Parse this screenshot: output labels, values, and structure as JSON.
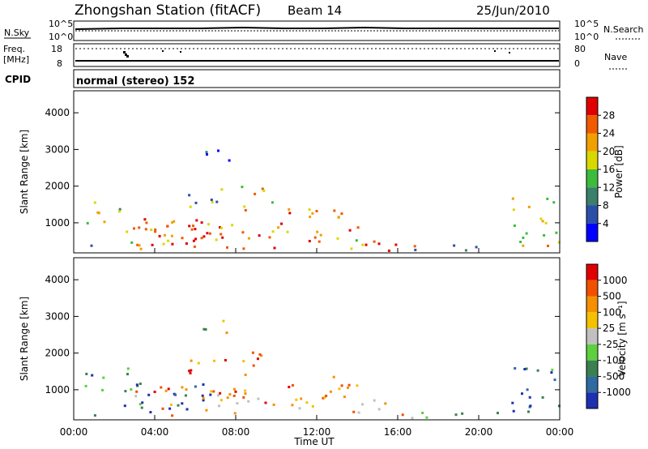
{
  "header": {
    "title": "Zhongshan Station (fitACF)",
    "beam": "Beam 14",
    "date": "25/Jun/2010"
  },
  "noise_panel": {
    "left_label": "N.Sky",
    "right_label": "N.Search",
    "left_ticks": [
      "10^5",
      "10^0"
    ],
    "right_ticks": [
      "10^5",
      "10^0"
    ]
  },
  "freq_panel": {
    "left_label_line1": "Freq.",
    "left_label_line2": "[MHz]",
    "left_ticks": [
      "18",
      "8"
    ],
    "right_label": "Nave",
    "right_ticks": [
      "80",
      "0"
    ]
  },
  "cpid": {
    "label": "CPID",
    "value": "normal (stereo) 152"
  },
  "colors": {
    "power": [
      "#0000ff",
      "#2b4fa8",
      "#3c7f6a",
      "#3dbb3d",
      "#d8d800",
      "#f0a000",
      "#f05a00",
      "#e00000"
    ],
    "velocity": [
      "#1e2fb0",
      "#2f6aa0",
      "#3a8050",
      "#5ecf3e",
      "#c0c0c0",
      "#f5c000",
      "#f59000",
      "#f05000",
      "#e00000"
    ]
  },
  "chart_data": [
    {
      "type": "heatmap",
      "name": "power",
      "ylabel": "Slant Range [km]",
      "xlabel": "",
      "x_ticks": [
        "00:00",
        "04:00",
        "08:00",
        "12:00",
        "16:00",
        "20:00",
        "00:00"
      ],
      "y_ticks": [
        1000,
        2000,
        3000,
        4000
      ],
      "ylim": [
        180,
        4600
      ],
      "xlim_hours": [
        0,
        24
      ],
      "colorbar": {
        "label": "Power [dB]",
        "tick_labels": [
          "4",
          "8",
          "12",
          "16",
          "20",
          "24",
          "28"
        ],
        "range": [
          0,
          32
        ]
      },
      "echo_regions": [
        {
          "t0": 0.3,
          "t1": 1.5,
          "r0": 900,
          "r1": 1700,
          "level": 0.55
        },
        {
          "t0": 0.3,
          "t1": 1.4,
          "r0": 300,
          "r1": 500,
          "level": 0.3
        },
        {
          "t0": 2.0,
          "t1": 2.7,
          "r0": 1200,
          "r1": 1700,
          "level": 0.45
        },
        {
          "t0": 2.3,
          "t1": 3.5,
          "r0": 300,
          "r1": 1300,
          "level": 0.65
        },
        {
          "t0": 3.3,
          "t1": 6.8,
          "r0": 400,
          "r1": 1200,
          "level": 0.82
        },
        {
          "t0": 3.0,
          "t1": 10.5,
          "r0": 300,
          "r1": 1100,
          "level": 0.78
        },
        {
          "t0": 5.5,
          "t1": 7.5,
          "r0": 1400,
          "r1": 2000,
          "level": 0.35
        },
        {
          "t0": 6.3,
          "t1": 7.8,
          "r0": 2500,
          "r1": 3000,
          "level": 0.15
        },
        {
          "t0": 8.2,
          "t1": 9.8,
          "r0": 1300,
          "r1": 2100,
          "level": 0.6
        },
        {
          "t0": 10.5,
          "t1": 14.0,
          "r0": 400,
          "r1": 1400,
          "level": 0.75
        },
        {
          "t0": 13.5,
          "t1": 15.5,
          "r0": 300,
          "r1": 800,
          "level": 0.7
        },
        {
          "t0": 15.5,
          "t1": 17.5,
          "r0": 250,
          "r1": 500,
          "level": 0.85
        },
        {
          "t0": 16.5,
          "t1": 19.5,
          "r0": 250,
          "r1": 450,
          "level": 0.35
        },
        {
          "t0": 19.5,
          "t1": 21.0,
          "r0": 250,
          "r1": 400,
          "level": 0.3
        },
        {
          "t0": 21.6,
          "t1": 24.0,
          "r0": 400,
          "r1": 1700,
          "level": 0.6
        }
      ]
    },
    {
      "type": "heatmap",
      "name": "velocity",
      "ylabel": "Slant Range [km]",
      "xlabel": "Time UT",
      "x_ticks": [
        "00:00",
        "04:00",
        "08:00",
        "12:00",
        "16:00",
        "20:00",
        "00:00"
      ],
      "y_ticks": [
        1000,
        2000,
        3000,
        4000
      ],
      "ylim": [
        180,
        4600
      ],
      "xlim_hours": [
        0,
        24
      ],
      "colorbar": {
        "label": "Velocity [m s⁻¹]",
        "tick_labels": [
          "1000",
          "500",
          "100",
          "25",
          "-25",
          "-100",
          "-500",
          "-1000"
        ],
        "range": [
          -1000,
          1000
        ]
      },
      "echo_regions": [
        {
          "t0": 0.3,
          "t1": 1.5,
          "r0": 900,
          "r1": 1700,
          "level": 0.28
        },
        {
          "t0": 0.3,
          "t1": 1.4,
          "r0": 300,
          "r1": 500,
          "level": 0.3
        },
        {
          "t0": 2.0,
          "t1": 2.7,
          "r0": 1200,
          "r1": 1700,
          "level": 0.3
        },
        {
          "t0": 2.3,
          "t1": 3.5,
          "r0": 300,
          "r1": 1300,
          "level": 0.2
        },
        {
          "t0": 3.3,
          "t1": 6.8,
          "r0": 400,
          "r1": 1200,
          "level": 0.1
        },
        {
          "t0": 3.0,
          "t1": 10.5,
          "r0": 300,
          "r1": 1100,
          "level": 0.7
        },
        {
          "t0": 5.5,
          "t1": 7.5,
          "r0": 1400,
          "r1": 2000,
          "level": 0.72
        },
        {
          "t0": 6.3,
          "t1": 7.8,
          "r0": 2500,
          "r1": 3000,
          "level": 0.5
        },
        {
          "t0": 8.2,
          "t1": 9.8,
          "r0": 1300,
          "r1": 2100,
          "level": 0.75
        },
        {
          "t0": 10.5,
          "t1": 14.0,
          "r0": 400,
          "r1": 1400,
          "level": 0.72
        },
        {
          "t0": 13.5,
          "t1": 15.5,
          "r0": 300,
          "r1": 800,
          "level": 0.68
        },
        {
          "t0": 15.5,
          "t1": 17.5,
          "r0": 250,
          "r1": 500,
          "level": 0.65
        },
        {
          "t0": 16.5,
          "t1": 19.5,
          "r0": 250,
          "r1": 450,
          "level": 0.4
        },
        {
          "t0": 19.5,
          "t1": 21.0,
          "r0": 250,
          "r1": 400,
          "level": 0.35
        },
        {
          "t0": 21.6,
          "t1": 24.0,
          "r0": 400,
          "r1": 1700,
          "level": 0.15
        }
      ]
    }
  ]
}
